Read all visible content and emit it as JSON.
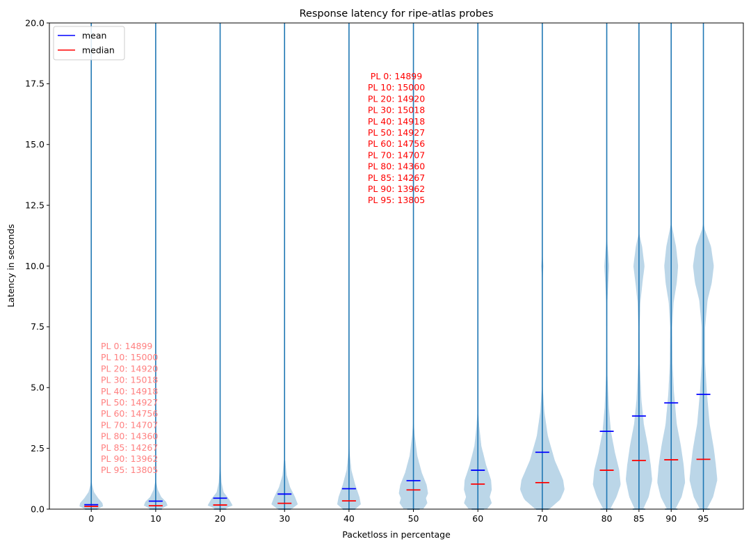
{
  "chart_data": {
    "type": "violin",
    "title": "Response latency for ripe-atlas probes",
    "xlabel": "Packetloss in percentage",
    "ylabel": "Latency in seconds",
    "ylim": [
      0,
      20
    ],
    "yticks": [
      0.0,
      2.5,
      5.0,
      7.5,
      10.0,
      12.5,
      15.0,
      17.5,
      20.0
    ],
    "ytick_labels": [
      "0.0",
      "2.5",
      "5.0",
      "7.5",
      "10.0",
      "12.5",
      "15.0",
      "17.5",
      "20.0"
    ],
    "xlim": [
      -6.5,
      101.2
    ],
    "categories": [
      "0",
      "10",
      "20",
      "30",
      "40",
      "50",
      "60",
      "70",
      "80",
      "85",
      "90",
      "95"
    ],
    "x": [
      0,
      10,
      20,
      30,
      40,
      50,
      60,
      70,
      80,
      85,
      90,
      95
    ],
    "mean": [
      0.18,
      0.33,
      0.45,
      0.62,
      0.84,
      1.17,
      1.6,
      2.34,
      3.2,
      3.83,
      4.37,
      4.72
    ],
    "median": [
      0.11,
      0.14,
      0.17,
      0.24,
      0.34,
      0.79,
      1.03,
      1.09,
      1.6,
      2.0,
      2.03,
      2.05
    ],
    "legend": {
      "position": "top-left",
      "entries": [
        {
          "label": "mean",
          "color": "#0000ff"
        },
        {
          "label": "median",
          "color": "#ff0000"
        }
      ]
    },
    "annotations": [
      "PL 0: 14899",
      "PL 10: 15000",
      "PL 20: 14920",
      "PL 30: 15018",
      "PL 40: 14918",
      "PL 50: 14927",
      "PL 60: 14756",
      "PL 70: 14707",
      "PL 80: 14360",
      "PL 85: 14267",
      "PL 90: 13962",
      "PL 95: 13805"
    ],
    "colors": {
      "body": "#1f77b4",
      "mean": "#0000ff",
      "median": "#ff0000",
      "annotation": "#ff0000",
      "annotation_faded": "#ff8080"
    },
    "grid": false
  }
}
